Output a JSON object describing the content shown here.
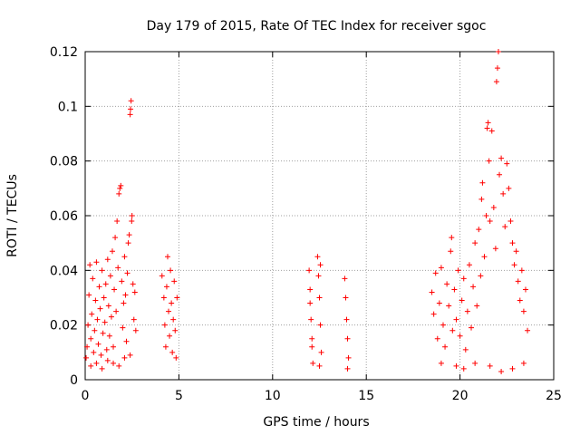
{
  "chart_data": {
    "type": "scatter",
    "title": "Day 179 of 2015, Rate Of TEC Index for receiver sgoc",
    "xlabel": "GPS time / hours",
    "ylabel": "ROTI / TECUs",
    "xlim": [
      0,
      25
    ],
    "ylim": [
      0,
      0.12
    ],
    "x_ticks": [
      {
        "value": 0,
        "label": "0"
      },
      {
        "value": 5,
        "label": "5"
      },
      {
        "value": 10,
        "label": "10"
      },
      {
        "value": 15,
        "label": "15"
      },
      {
        "value": 20,
        "label": "20"
      },
      {
        "value": 25,
        "label": "25"
      }
    ],
    "y_ticks": [
      {
        "value": 0,
        "label": "0"
      },
      {
        "value": 0.02,
        "label": "0.02"
      },
      {
        "value": 0.04,
        "label": "0.04"
      },
      {
        "value": 0.06,
        "label": "0.06"
      },
      {
        "value": 0.08,
        "label": "0.08"
      },
      {
        "value": 0.1,
        "label": "0.1"
      },
      {
        "value": 0.12,
        "label": "0.12"
      }
    ],
    "grid": true,
    "marker": "+",
    "marker_color": "#ff0000",
    "series": [
      {
        "name": "ROTI",
        "points": [
          [
            0.05,
            0.008
          ],
          [
            0.1,
            0.012
          ],
          [
            0.15,
            0.02
          ],
          [
            0.2,
            0.031
          ],
          [
            0.25,
            0.042
          ],
          [
            0.3,
            0.015
          ],
          [
            0.35,
            0.024
          ],
          [
            0.4,
            0.037
          ],
          [
            0.45,
            0.01
          ],
          [
            0.5,
            0.018
          ],
          [
            0.55,
            0.029
          ],
          [
            0.6,
            0.043
          ],
          [
            0.65,
            0.022
          ],
          [
            0.7,
            0.013
          ],
          [
            0.75,
            0.034
          ],
          [
            0.8,
            0.026
          ],
          [
            0.85,
            0.009
          ],
          [
            0.9,
            0.04
          ],
          [
            0.95,
            0.017
          ],
          [
            1.0,
            0.03
          ],
          [
            1.05,
            0.021
          ],
          [
            1.1,
            0.035
          ],
          [
            1.15,
            0.011
          ],
          [
            1.2,
            0.044
          ],
          [
            1.25,
            0.027
          ],
          [
            1.3,
            0.016
          ],
          [
            1.35,
            0.038
          ],
          [
            1.4,
            0.023
          ],
          [
            1.45,
            0.047
          ],
          [
            1.5,
            0.012
          ],
          [
            1.55,
            0.033
          ],
          [
            1.6,
            0.052
          ],
          [
            1.65,
            0.025
          ],
          [
            1.7,
            0.058
          ],
          [
            1.75,
            0.041
          ],
          [
            1.8,
            0.068
          ],
          [
            1.85,
            0.07
          ],
          [
            1.9,
            0.071
          ],
          [
            1.95,
            0.036
          ],
          [
            2.0,
            0.019
          ],
          [
            2.05,
            0.028
          ],
          [
            2.1,
            0.045
          ],
          [
            2.15,
            0.031
          ],
          [
            2.2,
            0.014
          ],
          [
            2.25,
            0.039
          ],
          [
            2.3,
            0.05
          ],
          [
            2.35,
            0.053
          ],
          [
            2.4,
            0.097
          ],
          [
            2.42,
            0.099
          ],
          [
            2.45,
            0.102
          ],
          [
            2.48,
            0.058
          ],
          [
            2.5,
            0.06
          ],
          [
            2.55,
            0.035
          ],
          [
            2.6,
            0.022
          ],
          [
            2.65,
            0.032
          ],
          [
            2.7,
            0.018
          ],
          [
            0.3,
            0.005
          ],
          [
            0.6,
            0.006
          ],
          [
            0.9,
            0.004
          ],
          [
            1.2,
            0.007
          ],
          [
            1.5,
            0.006
          ],
          [
            1.8,
            0.005
          ],
          [
            2.1,
            0.008
          ],
          [
            2.4,
            0.009
          ],
          [
            4.1,
            0.038
          ],
          [
            4.2,
            0.03
          ],
          [
            4.25,
            0.02
          ],
          [
            4.3,
            0.012
          ],
          [
            4.35,
            0.034
          ],
          [
            4.4,
            0.045
          ],
          [
            4.45,
            0.025
          ],
          [
            4.5,
            0.016
          ],
          [
            4.55,
            0.04
          ],
          [
            4.6,
            0.028
          ],
          [
            4.65,
            0.01
          ],
          [
            4.7,
            0.022
          ],
          [
            4.75,
            0.036
          ],
          [
            4.8,
            0.018
          ],
          [
            4.85,
            0.008
          ],
          [
            4.9,
            0.03
          ],
          [
            11.95,
            0.04
          ],
          [
            12.0,
            0.033
          ],
          [
            12.05,
            0.022
          ],
          [
            12.1,
            0.015
          ],
          [
            12.15,
            0.006
          ],
          [
            12.0,
            0.028
          ],
          [
            12.1,
            0.012
          ],
          [
            12.4,
            0.045
          ],
          [
            12.45,
            0.038
          ],
          [
            12.5,
            0.03
          ],
          [
            12.55,
            0.02
          ],
          [
            12.6,
            0.01
          ],
          [
            12.5,
            0.005
          ],
          [
            12.55,
            0.042
          ],
          [
            13.85,
            0.037
          ],
          [
            13.9,
            0.03
          ],
          [
            13.95,
            0.022
          ],
          [
            14.0,
            0.015
          ],
          [
            14.05,
            0.008
          ],
          [
            14.0,
            0.004
          ],
          [
            18.5,
            0.032
          ],
          [
            18.6,
            0.024
          ],
          [
            18.7,
            0.039
          ],
          [
            18.8,
            0.015
          ],
          [
            18.9,
            0.028
          ],
          [
            19.0,
            0.041
          ],
          [
            19.1,
            0.02
          ],
          [
            19.2,
            0.012
          ],
          [
            19.3,
            0.035
          ],
          [
            19.4,
            0.027
          ],
          [
            19.5,
            0.047
          ],
          [
            19.55,
            0.052
          ],
          [
            19.6,
            0.018
          ],
          [
            19.7,
            0.033
          ],
          [
            19.8,
            0.022
          ],
          [
            19.9,
            0.04
          ],
          [
            20.0,
            0.016
          ],
          [
            20.1,
            0.029
          ],
          [
            20.2,
            0.037
          ],
          [
            20.3,
            0.011
          ],
          [
            20.4,
            0.025
          ],
          [
            20.5,
            0.042
          ],
          [
            20.6,
            0.019
          ],
          [
            20.7,
            0.034
          ],
          [
            20.8,
            0.05
          ],
          [
            20.9,
            0.027
          ],
          [
            21.0,
            0.055
          ],
          [
            21.1,
            0.038
          ],
          [
            21.15,
            0.066
          ],
          [
            21.2,
            0.072
          ],
          [
            21.3,
            0.045
          ],
          [
            21.4,
            0.06
          ],
          [
            21.45,
            0.092
          ],
          [
            21.5,
            0.094
          ],
          [
            21.55,
            0.08
          ],
          [
            21.6,
            0.058
          ],
          [
            21.7,
            0.091
          ],
          [
            21.8,
            0.063
          ],
          [
            21.9,
            0.048
          ],
          [
            21.95,
            0.109
          ],
          [
            22.0,
            0.114
          ],
          [
            22.05,
            0.12
          ],
          [
            22.1,
            0.075
          ],
          [
            22.2,
            0.081
          ],
          [
            22.3,
            0.068
          ],
          [
            22.4,
            0.056
          ],
          [
            22.5,
            0.079
          ],
          [
            22.6,
            0.07
          ],
          [
            22.7,
            0.058
          ],
          [
            22.8,
            0.05
          ],
          [
            22.9,
            0.042
          ],
          [
            23.0,
            0.047
          ],
          [
            23.1,
            0.036
          ],
          [
            23.2,
            0.029
          ],
          [
            23.3,
            0.04
          ],
          [
            23.4,
            0.025
          ],
          [
            23.5,
            0.033
          ],
          [
            23.6,
            0.018
          ],
          [
            19.0,
            0.006
          ],
          [
            19.8,
            0.005
          ],
          [
            20.2,
            0.004
          ],
          [
            20.8,
            0.006
          ],
          [
            21.6,
            0.005
          ],
          [
            22.2,
            0.003
          ],
          [
            22.8,
            0.004
          ],
          [
            23.4,
            0.006
          ]
        ]
      }
    ]
  }
}
